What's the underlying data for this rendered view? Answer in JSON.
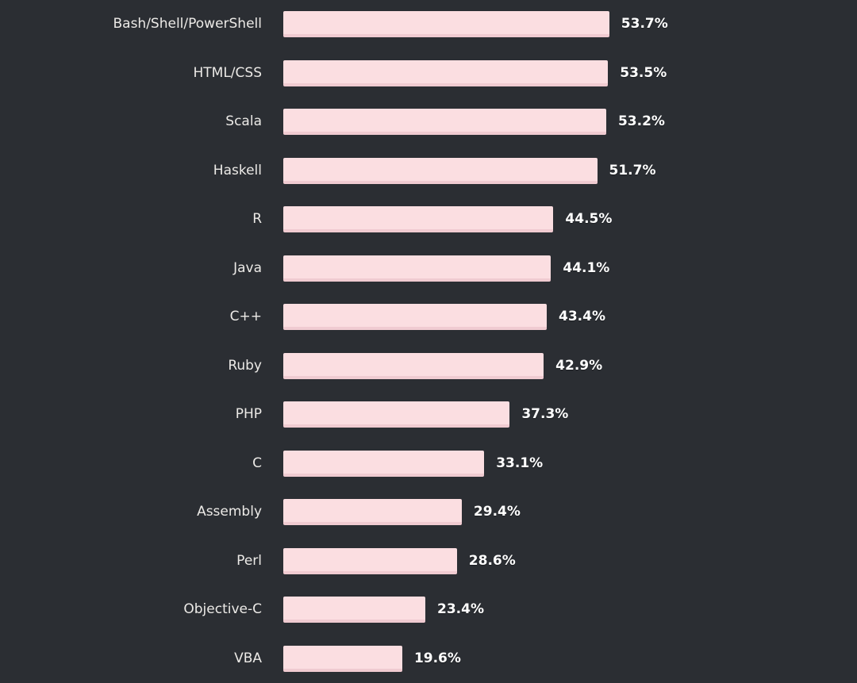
{
  "chart_data": {
    "type": "bar",
    "orientation": "horizontal",
    "title": "",
    "xlabel": "",
    "ylabel": "",
    "categories": [
      "Bash/Shell/PowerShell",
      "HTML/CSS",
      "Scala",
      "Haskell",
      "R",
      "Java",
      "C++",
      "Ruby",
      "PHP",
      "C",
      "Assembly",
      "Perl",
      "Objective-C",
      "VBA"
    ],
    "values": [
      53.7,
      53.5,
      53.2,
      51.7,
      44.5,
      44.1,
      43.4,
      42.9,
      37.3,
      33.1,
      29.4,
      28.6,
      23.4,
      19.6
    ],
    "value_labels": [
      "53.7%",
      "53.5%",
      "53.2%",
      "51.7%",
      "44.5%",
      "44.1%",
      "43.4%",
      "42.9%",
      "37.3%",
      "33.1%",
      "29.4%",
      "28.6%",
      "23.4%",
      "19.6%"
    ],
    "value_suffix": "%",
    "xlim": [
      0,
      60
    ],
    "grid": false,
    "legend": "none",
    "colors": {
      "background": "#2b2e33",
      "bar_fill": "#fbdee1",
      "bar_edge": "#f0cbd1",
      "category_text": "#eceae7",
      "value_text": "#ffffff"
    }
  }
}
